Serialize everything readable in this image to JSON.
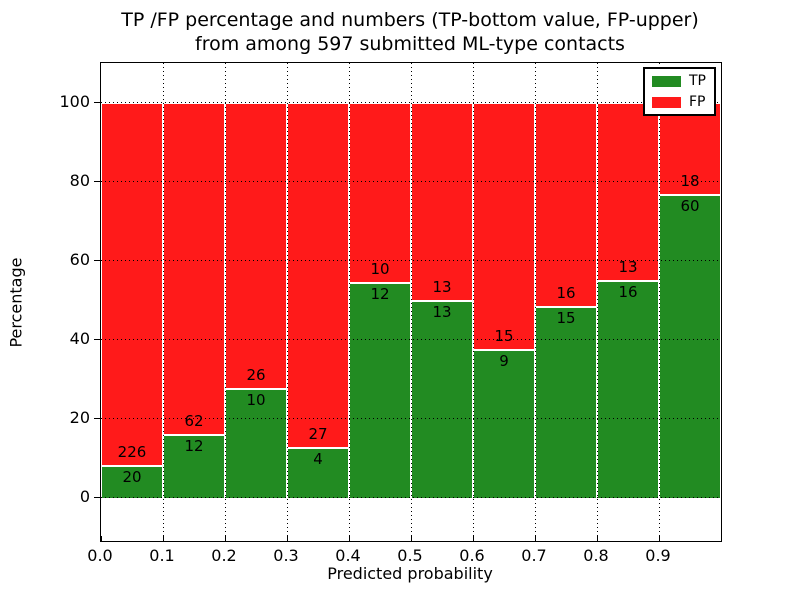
{
  "figure": {
    "title_line1": "TP /FP percentage and numbers (TP-bottom value, FP-upper)",
    "title_line2": "from among 597 submitted ML-type contacts"
  },
  "chart_data": {
    "type": "bar",
    "stacked": true,
    "normalized_to": 100,
    "title": "TP /FP percentage and numbers (TP-bottom value, FP-upper)\nfrom among 597 submitted ML-type contacts",
    "xlabel": "Predicted probability",
    "ylabel": "Percentage",
    "total_contacts": 597,
    "categories": [
      "0.0",
      "0.1",
      "0.2",
      "0.3",
      "0.4",
      "0.5",
      "0.6",
      "0.7",
      "0.8",
      "0.9"
    ],
    "bin_width": 0.1,
    "series": [
      {
        "name": "TP",
        "color": "#228B22",
        "counts": [
          20,
          12,
          10,
          4,
          12,
          13,
          9,
          15,
          16,
          60
        ],
        "pct": [
          8.1,
          16.2,
          27.8,
          12.9,
          54.5,
          50.0,
          37.5,
          48.4,
          55.2,
          76.9
        ]
      },
      {
        "name": "FP",
        "color": "#FF1A1A",
        "counts": [
          226,
          62,
          26,
          27,
          10,
          13,
          15,
          16,
          13,
          18
        ],
        "pct": [
          91.9,
          83.8,
          72.2,
          87.1,
          45.5,
          50.0,
          62.5,
          51.6,
          44.8,
          23.1
        ]
      }
    ],
    "x_tick_labels": [
      "0.0",
      "0.1",
      "0.2",
      "0.3",
      "0.4",
      "0.5",
      "0.6",
      "0.7",
      "0.8",
      "0.9"
    ],
    "y_tick_labels": [
      "0",
      "20",
      "40",
      "60",
      "80",
      "100"
    ],
    "y_ticks": [
      0,
      20,
      40,
      60,
      80,
      100
    ],
    "xlim": [
      0,
      1
    ],
    "ylim": [
      -11,
      110
    ],
    "grid": {
      "visible": true,
      "style": "dotted",
      "color": "#000000",
      "above_bars": true
    },
    "legend": {
      "position": "upper right",
      "entries": [
        "TP",
        "FP"
      ]
    },
    "annotation_note": "TP count drawn below segment boundary, FP count above"
  }
}
